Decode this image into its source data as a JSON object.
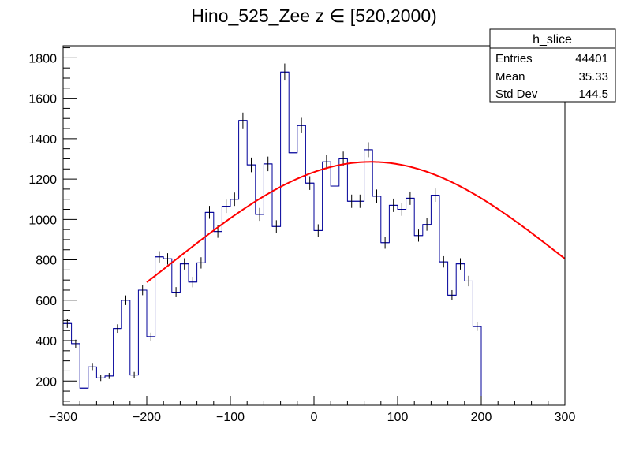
{
  "chart_data": {
    "type": "histogram",
    "title": "Hino_525_Zee z  ∈ [520,2000)",
    "xlabel": "",
    "ylabel": "",
    "xlim": [
      -300,
      300
    ],
    "ylim": [
      80,
      1860
    ],
    "x_ticks": [
      -300,
      -200,
      -100,
      0,
      100,
      200,
      300
    ],
    "y_ticks": [
      200,
      400,
      600,
      800,
      1000,
      1200,
      1400,
      1600,
      1800
    ],
    "bin_width": 10,
    "bin_edges_start": -300,
    "series": [
      {
        "name": "h_slice",
        "color": "#000099",
        "values": [
          485,
          385,
          165,
          270,
          215,
          225,
          460,
          600,
          230,
          650,
          420,
          815,
          805,
          640,
          780,
          690,
          785,
          1035,
          940,
          1065,
          1100,
          1490,
          1270,
          1025,
          1275,
          965,
          1730,
          1330,
          1465,
          1180,
          945,
          1285,
          1165,
          1300,
          1090,
          1090,
          1345,
          1115,
          885,
          1070,
          1050,
          1105,
          920,
          975,
          1120,
          790,
          625,
          780,
          695,
          470
        ],
        "errors": [
          22,
          20,
          13,
          16,
          15,
          15,
          21,
          24,
          15,
          25,
          20,
          28,
          28,
          25,
          28,
          26,
          28,
          32,
          31,
          33,
          33,
          39,
          36,
          32,
          36,
          31,
          42,
          36,
          38,
          34,
          31,
          36,
          34,
          36,
          33,
          33,
          37,
          33,
          30,
          33,
          32,
          33,
          30,
          31,
          33,
          28,
          25,
          28,
          26,
          22
        ]
      }
    ],
    "fit": {
      "name": "fit",
      "color": "#ff0000",
      "type": "gaussian",
      "range": [
        -200,
        300
      ],
      "amplitude": 1285,
      "mean": 68,
      "sigma": 240
    },
    "stats_box": {
      "title": "h_slice",
      "rows": [
        {
          "label": "Entries",
          "value": "44401"
        },
        {
          "label": "Mean",
          "value": "35.33"
        },
        {
          "label": "Std Dev",
          "value": "144.5"
        }
      ]
    }
  }
}
